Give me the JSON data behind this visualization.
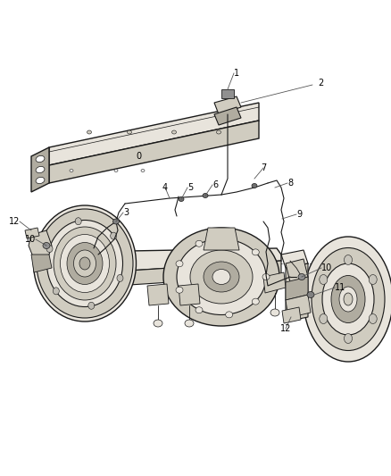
{
  "bg_color": "#ffffff",
  "line_color": "#1a1a1a",
  "shade_light": "#e8e4dc",
  "shade_mid": "#d0ccc0",
  "shade_dark": "#b0aca0",
  "fig_width": 4.38,
  "fig_height": 5.33,
  "dpi": 100
}
